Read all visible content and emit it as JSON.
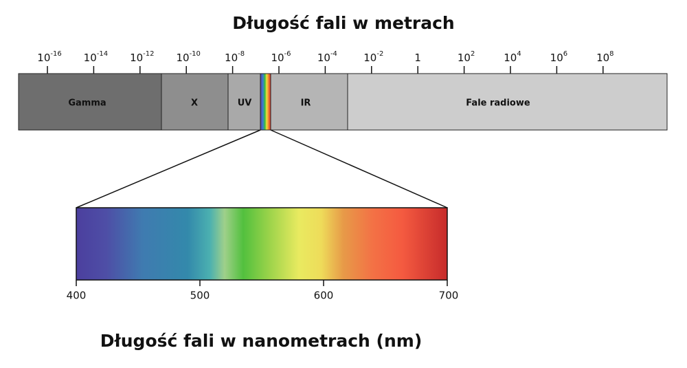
{
  "title": "Długość fali w metrach",
  "top_ticks": [
    {
      "base": "10",
      "exp": "-16"
    },
    {
      "base": "10",
      "exp": "-14"
    },
    {
      "base": "10",
      "exp": "-12"
    },
    {
      "base": "10",
      "exp": "-10"
    },
    {
      "base": "10",
      "exp": "-8"
    },
    {
      "base": "10",
      "exp": "-6"
    },
    {
      "base": "10",
      "exp": "-4"
    },
    {
      "base": "10",
      "exp": "-2"
    },
    {
      "base": "1"
    },
    {
      "base": "10",
      "exp": "2"
    },
    {
      "base": "10",
      "exp": "4"
    },
    {
      "base": "10",
      "exp": "6"
    },
    {
      "base": "10",
      "exp": "8"
    }
  ],
  "bands": [
    "Gamma",
    "X",
    "UV",
    "IR",
    "Fale radiowe"
  ],
  "bottom_ticks": [
    400,
    500,
    600,
    700
  ],
  "bottom_title": "Długość fali w nanometrach (nm)"
}
